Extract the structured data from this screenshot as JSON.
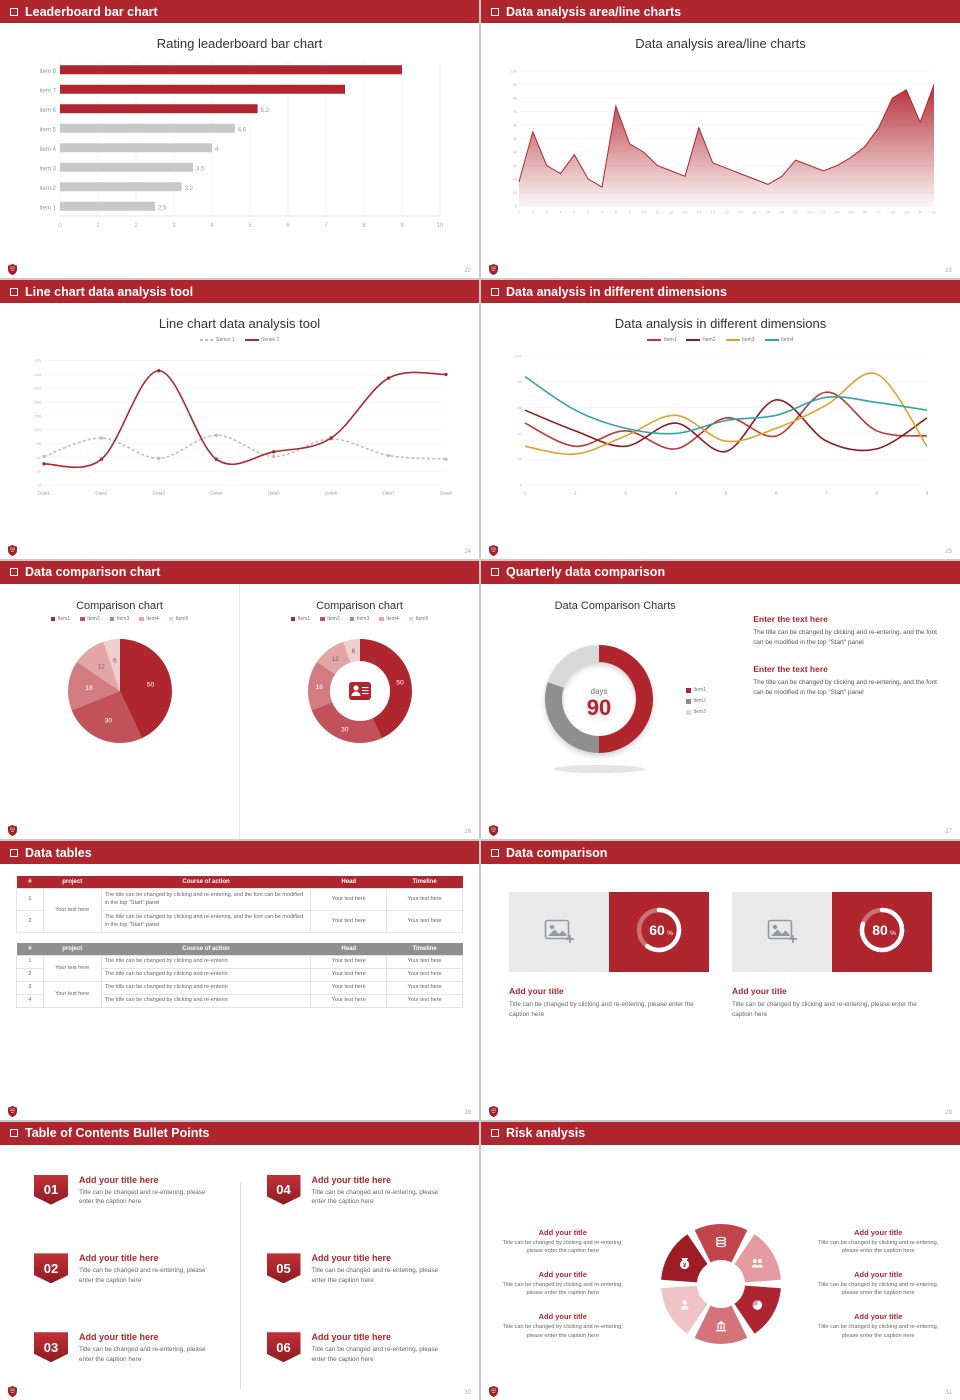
{
  "accent": "#b0262e",
  "icons": {
    "header_bullet": "square-outline-icon",
    "footer_logo": "school-crest-icon",
    "image_placeholder": "picture-plus-icon",
    "donut_center": "presenter-icon",
    "risk_icons": [
      "money-bag-icon",
      "coins-icon",
      "people-icon",
      "pie-chart-icon",
      "bank-icon",
      "person-icon"
    ]
  },
  "slides": [
    {
      "header": "Leaderboard bar chart",
      "title": "Rating leaderboard bar chart",
      "page": "22"
    },
    {
      "header": "Data analysis area/line charts",
      "title": "Data analysis area/line charts",
      "page": "23"
    },
    {
      "header": "Line chart data analysis tool",
      "title": "Line chart data analysis tool",
      "page": "24"
    },
    {
      "header": "Data analysis in different dimensions",
      "title": "Data analysis in different dimensions",
      "page": "25"
    },
    {
      "header": "Data comparison chart",
      "left_title": "Comparison chart",
      "right_title": "Comparison chart",
      "page": "26"
    },
    {
      "header": "Quarterly data comparison",
      "title": "Data Comparison Charts",
      "page": "27",
      "blocks": [
        {
          "title": "Enter the text here",
          "body": "The title can be changed by clicking and re-entering, and the font can be modified in the top \"Start\" panel"
        },
        {
          "title": "Enter the text here",
          "body": "The title can be changed by clicking and re-entering, and the font can be modified in the top \"Start\" panel"
        }
      ]
    },
    {
      "header": "Data tables",
      "page": "28",
      "tableA": {
        "header": [
          "#",
          "project",
          "Course of action",
          "Head",
          "Timeline"
        ],
        "rows": [
          "1",
          "2"
        ],
        "project": "Your text here",
        "long_text": "The title can be changed by clicking and re-entering, and the font can be modified in the top \"Start\" panel",
        "cell": "Your text here"
      },
      "tableB": {
        "header": [
          "#",
          "project",
          "Course of action",
          "Head",
          "Timeline"
        ],
        "rows": [
          "1",
          "2",
          "3",
          "4"
        ],
        "project": "Your text here",
        "course": "The title can be changed by clicking and re-enterin",
        "cell": "Your text here"
      }
    },
    {
      "header": "Data comparison",
      "page": "29",
      "cards": [
        {
          "percent": "60",
          "title": "Add your title",
          "caption": "Title can be changed by clicking and re-entering, please enter the caption here"
        },
        {
          "percent": "80",
          "title": "Add your title",
          "caption": "Title can be changed by clicking and re-entering, please enter the caption here"
        }
      ]
    },
    {
      "header": "Table of Contents Bullet Points",
      "page": "30",
      "items": [
        {
          "num": "01",
          "title": "Add your title here",
          "caption": "Title can be changed and re-entering, please enter the caption here"
        },
        {
          "num": "02",
          "title": "Add your title here",
          "caption": "Title can be changed and re-entering, please enter the caption here"
        },
        {
          "num": "03",
          "title": "Add your title here",
          "caption": "Title can be changed and re-entering, please enter the caption here"
        },
        {
          "num": "04",
          "title": "Add your title here",
          "caption": "Title can be changed and re-entering, please enter the caption here"
        },
        {
          "num": "05",
          "title": "Add your title here",
          "caption": "Title can be changed and re-entering, please enter the caption here"
        },
        {
          "num": "06",
          "title": "Add your title here",
          "caption": "Title can be changed and re-entering, please enter the caption here"
        }
      ]
    },
    {
      "header": "Risk analysis",
      "page": "31",
      "petal_colors": [
        "#9e1c24",
        "#c2454d",
        "#e49aa0",
        "#ad2530",
        "#d4737a",
        "#f0c3c6"
      ],
      "icons": [
        "money-bag",
        "coins",
        "people",
        "pie-chart",
        "bank",
        "person"
      ],
      "left": [
        {
          "title": "Add your title",
          "caption": "Title can be changed by clicking and re-entering, please enter the caption here"
        },
        {
          "title": "Add your title",
          "caption": "Title can be changed by clicking and re-entering, please enter the caption here"
        },
        {
          "title": "Add your title",
          "caption": "Title can be changed by clicking and re-entering, please enter the caption here"
        }
      ],
      "right": [
        {
          "title": "Add your title",
          "caption": "Title can be changed by clicking and re-entering, please enter the caption here"
        },
        {
          "title": "Add your title",
          "caption": "Title can be changed by clicking and re-entering, please enter the caption here"
        },
        {
          "title": "Add your title",
          "caption": "Title can be changed by clicking and re-entering, please enter the caption here"
        }
      ]
    }
  ],
  "chart_data": [
    {
      "type": "bar",
      "target": "chart-bar",
      "orientation": "horizontal",
      "title": "Rating leaderboard bar chart",
      "categories": [
        "item 1",
        "item 2",
        "item 3",
        "item 4",
        "item 5",
        "item 6",
        "item 7",
        "item 8"
      ],
      "values": [
        2.5,
        3.2,
        3.5,
        4,
        4.6,
        5.2,
        7.5,
        9
      ],
      "value_labels": [
        "2.5",
        "3.2",
        "3.5",
        "4",
        "4.6",
        "5.2",
        "",
        ""
      ],
      "colors": [
        "#c8c8c8",
        "#c8c8c8",
        "#c8c8c8",
        "#c8c8c8",
        "#c8c8c8",
        "#b0262e",
        "#b0262e",
        "#b0262e"
      ],
      "xlim": [
        0,
        10
      ],
      "xticks": [
        0,
        1,
        2,
        3,
        4,
        5,
        6,
        7,
        8,
        9,
        10
      ],
      "grid": true
    },
    {
      "type": "area",
      "target": "chart-area",
      "title": "Data analysis area/line charts",
      "color": "#b0262e",
      "x": [
        1,
        2,
        3,
        4,
        5,
        6,
        7,
        8,
        9,
        10,
        11,
        12,
        13,
        14,
        15,
        16,
        17,
        18,
        19,
        20,
        21,
        22,
        23,
        24,
        25,
        26,
        27,
        28,
        29,
        30,
        31
      ],
      "values": [
        18,
        55,
        30,
        24,
        38,
        20,
        14,
        74,
        46,
        40,
        30,
        26,
        22,
        58,
        32,
        28,
        24,
        20,
        16,
        22,
        34,
        30,
        26,
        30,
        36,
        44,
        58,
        80,
        86,
        62,
        90
      ],
      "ylim": [
        0,
        100
      ],
      "yticks": [
        0,
        10,
        20,
        30,
        40,
        50,
        60,
        70,
        80,
        90,
        100
      ],
      "grid": true
    },
    {
      "type": "line",
      "target": "chart-line",
      "legend_target": "legend-line",
      "title": "Line chart data analysis tool",
      "categories": [
        "Data1",
        "Data2",
        "Data3",
        "Data4",
        "Data5",
        "Data6",
        "Data7",
        "Data8"
      ],
      "ylim": [
        0,
        280
      ],
      "yticks": [
        0,
        30,
        60,
        90,
        120,
        150,
        180,
        210,
        240,
        270
      ],
      "grid": true,
      "legend_position": "top",
      "series": [
        {
          "name": "Series 1",
          "color": "#bfbfbf",
          "dash": true,
          "markers": true,
          "values": [
            62,
            102,
            58,
            108,
            62,
            100,
            64,
            56
          ]
        },
        {
          "name": "Series 2",
          "color": "#b0262e",
          "dash": false,
          "markers": true,
          "values": [
            46,
            56,
            248,
            56,
            72,
            102,
            232,
            240
          ]
        }
      ]
    },
    {
      "type": "line",
      "target": "chart-multiline",
      "legend_target": "legend-multiline",
      "title": "Data analysis in different dimensions",
      "categories": [
        "1",
        "2",
        "3",
        "4",
        "5",
        "6",
        "7",
        "8",
        "9"
      ],
      "ylim": [
        0,
        100
      ],
      "yticks": [
        0,
        20,
        40,
        60,
        80,
        100
      ],
      "grid": true,
      "legend_position": "top",
      "series": [
        {
          "name": "Item1",
          "color": "#c23531",
          "values": [
            48,
            30,
            42,
            28,
            52,
            38,
            72,
            42,
            38
          ]
        },
        {
          "name": "Item2",
          "color": "#8b1d22",
          "values": [
            58,
            42,
            30,
            48,
            26,
            66,
            34,
            28,
            52
          ]
        },
        {
          "name": "Item3",
          "color": "#e0a030",
          "values": [
            30,
            24,
            38,
            54,
            34,
            44,
            62,
            86,
            30
          ]
        },
        {
          "name": "Item4",
          "color": "#31a2ac",
          "values": [
            84,
            58,
            44,
            40,
            50,
            54,
            68,
            64,
            58
          ]
        }
      ]
    },
    {
      "type": "pie",
      "target": "chart-pie",
      "legend_target": "legend-pie",
      "title": "Comparison chart",
      "labels": [
        "Item1",
        "Item2",
        "Item3",
        "Item4",
        "Item5"
      ],
      "values": [
        50,
        30,
        18,
        12,
        6
      ],
      "size": 122,
      "outer": 52,
      "inner": 0,
      "colors": [
        "#b0262e",
        "#c25259",
        "#d27b80",
        "#e2a5a8",
        "#f0cdcf"
      ]
    },
    {
      "type": "pie",
      "target": "chart-donut",
      "legend_target": "legend-donut",
      "title": "Comparison chart",
      "labels": [
        "Item1",
        "Item2",
        "Item3",
        "Item4",
        "Item5"
      ],
      "values": [
        50,
        30,
        18,
        12,
        6
      ],
      "size": 122,
      "outer": 52,
      "inner": 30,
      "center_icon": "presenter",
      "colors": [
        "#b0262e",
        "#c25259",
        "#d27b80",
        "#e2a5a8",
        "#f0cdcf"
      ]
    },
    {
      "type": "pie",
      "target": "chart-days",
      "legend_target": "legend-days",
      "title": "Data Comparison Charts",
      "labels": [
        "Item1",
        "Item2",
        "Item3"
      ],
      "values": [
        50,
        30,
        20
      ],
      "size": 150,
      "outer": 54,
      "inner": 37,
      "show_labels": false,
      "shadow": true,
      "center_label": "days",
      "center_value": "90",
      "colors": [
        "#b0262e",
        "#8f8f8f",
        "#d9d9d9"
      ]
    },
    {
      "type": "ring",
      "target": "ring-60",
      "value": "60",
      "suffix": "%"
    },
    {
      "type": "ring",
      "target": "ring-80",
      "value": "80",
      "suffix": "%"
    }
  ]
}
